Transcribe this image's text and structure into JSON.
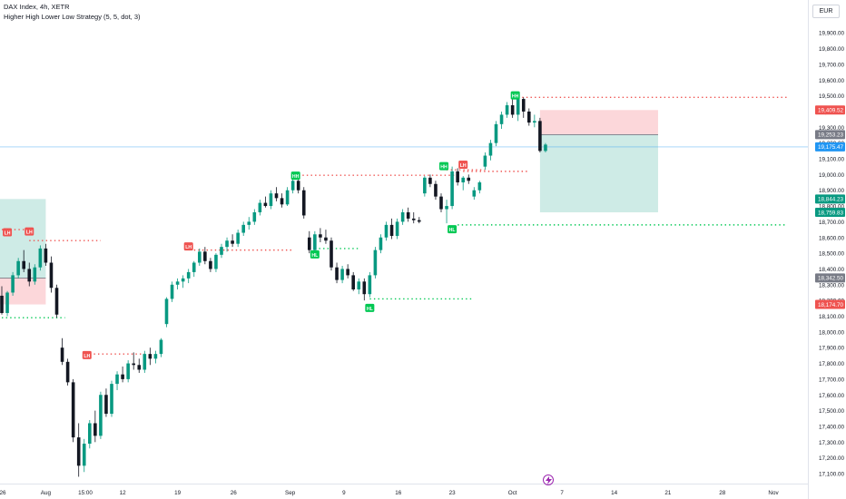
{
  "header": {
    "title": "DAX Index, 4h, XETR",
    "indicator": "Higher High Lower Low Strategy (5, 5, dot, 3)",
    "currency": "EUR"
  },
  "icons": {
    "replay": "lightning-icon"
  },
  "colors": {
    "up": "#089981",
    "down": "#131722",
    "bull_label": "#00c853",
    "bear_label": "#ef5350",
    "bid_line": "#2196f3",
    "price_tag_dark": "#787b86"
  },
  "chart_data": {
    "type": "candlestick",
    "y_axis": {
      "min": 17050,
      "max": 19980,
      "ticks": [
        17100,
        17200,
        17300,
        17400,
        17500,
        17600,
        17700,
        17800,
        17900,
        18000,
        18100,
        18200,
        18300,
        18400,
        18500,
        18600,
        18700,
        18800,
        18900,
        19000,
        19100,
        19200,
        19300,
        19400,
        19500,
        19600,
        19700,
        19800,
        19900
      ],
      "tick_labels": [
        "17,100.00",
        "17,200.00",
        "17,300.00",
        "17,400.00",
        "17,500.00",
        "17,600.00",
        "17,700.00",
        "17,800.00",
        "17,900.00",
        "18,000.00",
        "18,100.00",
        "18,200.00",
        "18,300.00",
        "18,400.00",
        "18,500.00",
        "18,600.00",
        "18,700.00",
        "18,800.00",
        "18,900.00",
        "19,000.00",
        "19,100.00",
        "19,200.00",
        "19,300.00",
        "19,400.00",
        "19,500.00",
        "19,600.00",
        "19,700.00",
        "19,800.00",
        "19,900.00"
      ]
    },
    "x_axis": {
      "labels": [
        "26",
        "Aug",
        "15:00",
        "12",
        "19",
        "26",
        "Sep",
        "9",
        "16",
        "23",
        "Oct",
        "7",
        "14",
        "21",
        "28",
        "Nov"
      ],
      "label_bar_index": [
        -0.6,
        8,
        15.2,
        22,
        32,
        42.2,
        52.5,
        62.3,
        72.2,
        82,
        93,
        102,
        111.5,
        121.3,
        131.2,
        140.5
      ]
    },
    "price_tags": [
      {
        "label": "19,409.52",
        "value": 19409.52,
        "color": "#ef5350"
      },
      {
        "label": "19,253.23",
        "value": 19253.23,
        "color": "#787b86"
      },
      {
        "label": "19,175.47",
        "value": 19175.47,
        "color": "#2196f3"
      },
      {
        "label": "18,844.23",
        "value": 18844.23,
        "color": "#089981"
      },
      {
        "label": "18,759.83",
        "value": 18759.83,
        "color": "#089981"
      },
      {
        "label": "18,342.50",
        "value": 18342.5,
        "color": "#787b86"
      },
      {
        "label": "18,174.70",
        "value": 18174.7,
        "color": "#ef5350"
      }
    ],
    "bid_line": 19175.47,
    "candles": [
      [
        18230,
        18290,
        18110,
        18120
      ],
      [
        18120,
        18260,
        18100,
        18250
      ],
      [
        18250,
        18380,
        18230,
        18360
      ],
      [
        18360,
        18470,
        18340,
        18450
      ],
      [
        18450,
        18520,
        18380,
        18400
      ],
      [
        18400,
        18440,
        18290,
        18320
      ],
      [
        18320,
        18430,
        18300,
        18410
      ],
      [
        18410,
        18550,
        18390,
        18530
      ],
      [
        18530,
        18560,
        18420,
        18440
      ],
      [
        18440,
        18480,
        18250,
        18280
      ],
      [
        18280,
        18300,
        18090,
        18110
      ],
      [
        17900,
        17960,
        17790,
        17810
      ],
      [
        17810,
        17830,
        17660,
        17680
      ],
      [
        17680,
        17700,
        17300,
        17330
      ],
      [
        17330,
        17420,
        17080,
        17150
      ],
      [
        17150,
        17320,
        17110,
        17290
      ],
      [
        17290,
        17440,
        17260,
        17420
      ],
      [
        17420,
        17500,
        17300,
        17340
      ],
      [
        17340,
        17620,
        17320,
        17600
      ],
      [
        17600,
        17640,
        17460,
        17480
      ],
      [
        17480,
        17690,
        17460,
        17670
      ],
      [
        17670,
        17750,
        17630,
        17730
      ],
      [
        17730,
        17780,
        17680,
        17700
      ],
      [
        17700,
        17820,
        17680,
        17800
      ],
      [
        17800,
        17870,
        17760,
        17790
      ],
      [
        17790,
        17830,
        17740,
        17760
      ],
      [
        17760,
        17880,
        17740,
        17860
      ],
      [
        17860,
        17900,
        17790,
        17830
      ],
      [
        17830,
        17880,
        17800,
        17860
      ],
      [
        17860,
        17960,
        17840,
        17950
      ],
      [
        18050,
        18220,
        18030,
        18210
      ],
      [
        18210,
        18320,
        18190,
        18300
      ],
      [
        18300,
        18340,
        18270,
        18320
      ],
      [
        18320,
        18360,
        18280,
        18340
      ],
      [
        18340,
        18400,
        18310,
        18380
      ],
      [
        18380,
        18450,
        18350,
        18440
      ],
      [
        18440,
        18530,
        18420,
        18510
      ],
      [
        18510,
        18540,
        18430,
        18450
      ],
      [
        18450,
        18470,
        18380,
        18400
      ],
      [
        18400,
        18500,
        18380,
        18490
      ],
      [
        18490,
        18560,
        18470,
        18540
      ],
      [
        18540,
        18600,
        18510,
        18580
      ],
      [
        18580,
        18620,
        18540,
        18560
      ],
      [
        18560,
        18650,
        18540,
        18630
      ],
      [
        18630,
        18700,
        18610,
        18680
      ],
      [
        18680,
        18730,
        18650,
        18700
      ],
      [
        18700,
        18780,
        18680,
        18760
      ],
      [
        18760,
        18840,
        18740,
        18820
      ],
      [
        18820,
        18860,
        18790,
        18800
      ],
      [
        18800,
        18900,
        18780,
        18880
      ],
      [
        18880,
        18920,
        18830,
        18850
      ],
      [
        18850,
        18880,
        18790,
        18810
      ],
      [
        18810,
        18920,
        18800,
        18900
      ],
      [
        18900,
        18980,
        18880,
        18960
      ],
      [
        18960,
        18990,
        18880,
        18900
      ],
      [
        18900,
        18920,
        18720,
        18740
      ],
      [
        18600,
        18640,
        18500,
        18520
      ],
      [
        18520,
        18640,
        18500,
        18620
      ],
      [
        18620,
        18660,
        18570,
        18600
      ],
      [
        18600,
        18650,
        18560,
        18580
      ],
      [
        18580,
        18600,
        18390,
        18410
      ],
      [
        18410,
        18440,
        18310,
        18330
      ],
      [
        18330,
        18420,
        18310,
        18400
      ],
      [
        18400,
        18430,
        18340,
        18360
      ],
      [
        18360,
        18380,
        18260,
        18270
      ],
      [
        18270,
        18340,
        18240,
        18320
      ],
      [
        18320,
        18340,
        18200,
        18240
      ],
      [
        18240,
        18380,
        18220,
        18360
      ],
      [
        18360,
        18540,
        18340,
        18520
      ],
      [
        18520,
        18620,
        18500,
        18600
      ],
      [
        18600,
        18700,
        18580,
        18680
      ],
      [
        18680,
        18720,
        18590,
        18610
      ],
      [
        18610,
        18720,
        18590,
        18700
      ],
      [
        18700,
        18780,
        18680,
        18760
      ],
      [
        18760,
        18790,
        18700,
        18720
      ],
      [
        18720,
        18760,
        18690,
        18710
      ],
      [
        18710,
        18730,
        18690,
        18700
      ],
      [
        18880,
        18990,
        18860,
        18980
      ],
      [
        18980,
        19000,
        18920,
        18940
      ],
      [
        18940,
        18960,
        18840,
        18860
      ],
      [
        18860,
        18880,
        18760,
        18780
      ],
      [
        18780,
        18840,
        18690,
        18800
      ],
      [
        18800,
        19050,
        18780,
        19020
      ],
      [
        19020,
        19040,
        18930,
        18950
      ],
      [
        18950,
        18990,
        18900,
        18980
      ],
      [
        18980,
        19000,
        18940,
        18960
      ],
      [
        18860,
        18920,
        18840,
        18900
      ],
      [
        18900,
        18960,
        18880,
        18950
      ],
      [
        19050,
        19140,
        19030,
        19120
      ],
      [
        19120,
        19220,
        19090,
        19200
      ],
      [
        19200,
        19340,
        19180,
        19320
      ],
      [
        19320,
        19400,
        19290,
        19380
      ],
      [
        19380,
        19460,
        19360,
        19440
      ],
      [
        19440,
        19480,
        19360,
        19380
      ],
      [
        19380,
        19500,
        19340,
        19480
      ],
      [
        19480,
        19490,
        19360,
        19400
      ],
      [
        19400,
        19420,
        19310,
        19330
      ],
      [
        19330,
        19380,
        19300,
        19340
      ],
      [
        19340,
        19360,
        19140,
        19150
      ],
      [
        19150,
        19200,
        19140,
        19190
      ]
    ],
    "labels": [
      {
        "text": "LH",
        "bar": 1,
        "value": 18630,
        "kind": "bear"
      },
      {
        "text": "LH",
        "bar": 5,
        "value": 18635,
        "kind": "bear"
      },
      {
        "text": "LH",
        "bar": 15.5,
        "value": 17850,
        "kind": "bear"
      },
      {
        "text": "LH",
        "bar": 34,
        "value": 18540,
        "kind": "bear"
      },
      {
        "text": "HH",
        "bar": 53.5,
        "value": 18990,
        "kind": "bull"
      },
      {
        "text": "HL",
        "bar": 57,
        "value": 18490,
        "kind": "bull"
      },
      {
        "text": "HL",
        "bar": 67,
        "value": 18150,
        "kind": "bull"
      },
      {
        "text": "HH",
        "bar": 80.5,
        "value": 19050,
        "kind": "bull"
      },
      {
        "text": "LH",
        "bar": 84,
        "value": 19060,
        "kind": "bear"
      },
      {
        "text": "HL",
        "bar": 82,
        "value": 18650,
        "kind": "bull"
      },
      {
        "text": "HH",
        "bar": 93.5,
        "value": 19500,
        "kind": "bull"
      }
    ],
    "levels": [
      {
        "from": 0,
        "to": 6,
        "value": 18650,
        "kind": "bear"
      },
      {
        "from": 5,
        "to": 18,
        "value": 18580,
        "kind": "bear"
      },
      {
        "from": 0,
        "to": 11.5,
        "value": 18090,
        "kind": "bull"
      },
      {
        "from": 16,
        "to": 26,
        "value": 17860,
        "kind": "bear"
      },
      {
        "from": 35,
        "to": 53,
        "value": 18520,
        "kind": "bear"
      },
      {
        "from": 54,
        "to": 83,
        "value": 18995,
        "kind": "bear"
      },
      {
        "from": 57,
        "to": 65,
        "value": 18530,
        "kind": "bull"
      },
      {
        "from": 67,
        "to": 86,
        "value": 18210,
        "kind": "bull"
      },
      {
        "from": 81,
        "to": 88,
        "value": 19030,
        "kind": "bear"
      },
      {
        "from": 84,
        "to": 96,
        "value": 19020,
        "kind": "bear"
      },
      {
        "from": 83,
        "to": 143,
        "value": 18680,
        "kind": "bull"
      },
      {
        "from": 94,
        "to": 143,
        "value": 19490,
        "kind": "bear"
      }
    ],
    "positions": [
      {
        "from": -2,
        "to": 8,
        "entry": 18342.5,
        "target": 18844.23,
        "stop": 18174.7
      },
      {
        "from": 98,
        "to": 119.5,
        "entry": 19253.23,
        "target": 18759.83,
        "stop": 19409.52
      }
    ]
  }
}
